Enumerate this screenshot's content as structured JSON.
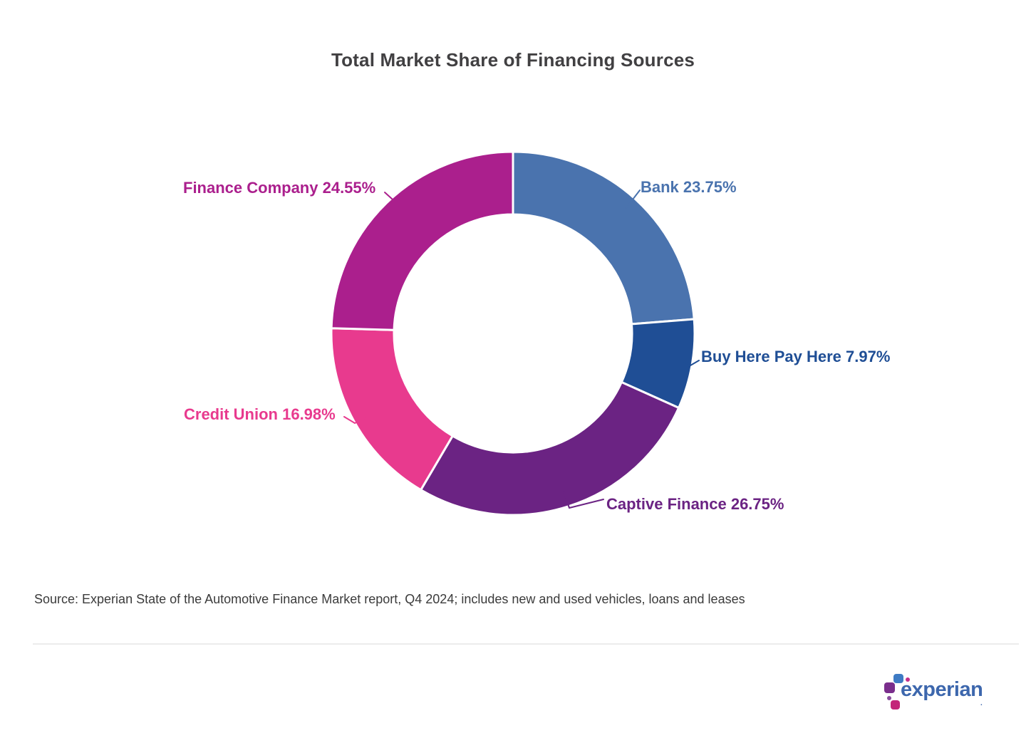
{
  "title": "Total Market Share of Financing Sources",
  "chart_data": {
    "type": "pie",
    "subtype": "donut",
    "title": "Total Market Share of Financing Sources",
    "start_angle_deg": 0,
    "direction": "clockwise",
    "inner_radius_ratio": 0.655,
    "legend_position": "labels-around-slices",
    "segments": [
      {
        "label": "Bank",
        "value": 23.75,
        "display": "Bank 23.75%",
        "color": "#4A73AE"
      },
      {
        "label": "Buy Here Pay Here",
        "value": 7.97,
        "display": "Buy Here Pay Here 7.97%",
        "color": "#1F4E95"
      },
      {
        "label": "Captive Finance",
        "value": 26.75,
        "display": "Captive Finance 26.75%",
        "color": "#6B2383"
      },
      {
        "label": "Credit Union",
        "value": 16.98,
        "display": "Credit Union 16.98%",
        "color": "#E83A8E"
      },
      {
        "label": "Finance Company",
        "value": 24.55,
        "display": "Finance Company 24.55%",
        "color": "#AB1F8D"
      }
    ]
  },
  "source": "Source: Experian State of the Automotive Finance Market report, Q4 2024; includes new and used vehicles, loans and leases",
  "divider_color": "#ececec",
  "logo": {
    "wordmark": "experian",
    "trademark": ".",
    "wordmark_color": "#3D67AD",
    "dots": {
      "blue": "#3E7BC4",
      "pink_small": "#C42F8A",
      "purple_large": "#7A2E8C",
      "purple_small": "#8A4E9E",
      "pink_square": "#C32579"
    }
  }
}
